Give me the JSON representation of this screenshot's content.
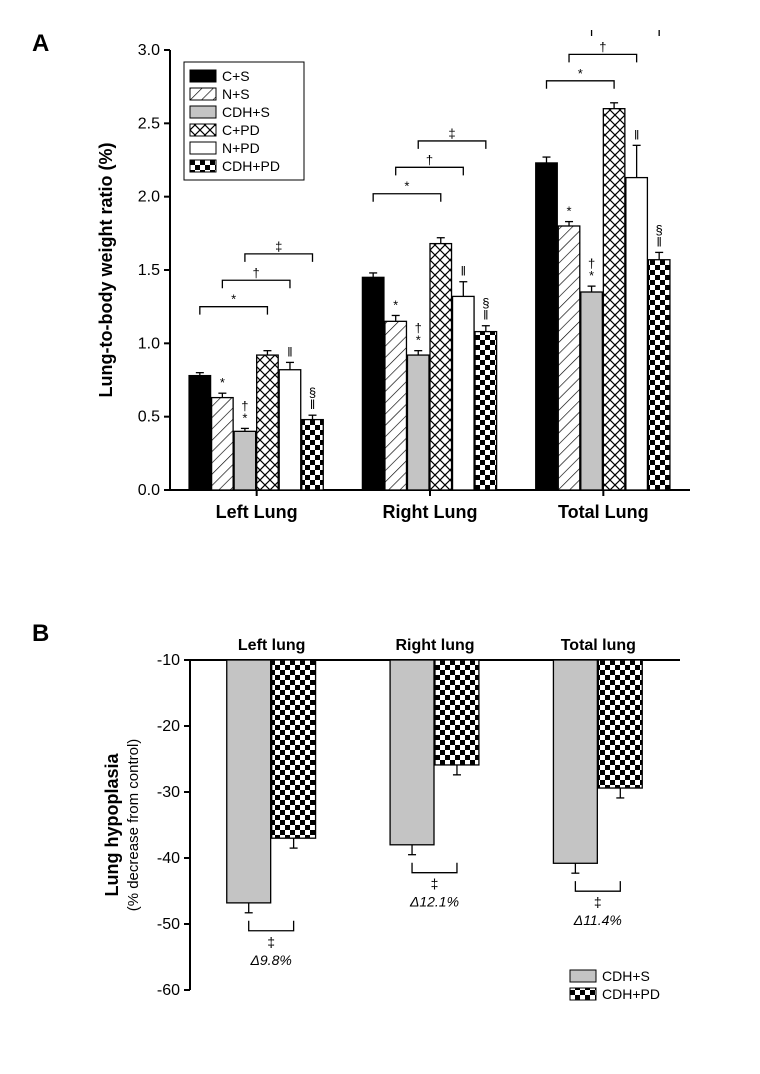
{
  "panelA": {
    "label": "A",
    "type": "bar",
    "y_label": "Lung-to-body weight ratio (%)",
    "y_label_fontsize": 18,
    "ylim": [
      0.0,
      3.0
    ],
    "ytick_step": 0.5,
    "categories": [
      "Left Lung",
      "Right Lung",
      "Total Lung"
    ],
    "category_fontsize": 18,
    "series": [
      {
        "name": "C+S",
        "fill": "#000000",
        "pattern": "solid"
      },
      {
        "name": "N+S",
        "fill": "#ffffff",
        "pattern": "diag"
      },
      {
        "name": "CDH+S",
        "fill": "#c4c4c4",
        "pattern": "solid"
      },
      {
        "name": "C+PD",
        "fill": "#ffffff",
        "pattern": "cross"
      },
      {
        "name": "N+PD",
        "fill": "#ffffff",
        "pattern": "solid"
      },
      {
        "name": "CDH+PD",
        "fill": "#ffffff",
        "pattern": "check"
      }
    ],
    "values": [
      [
        0.78,
        0.63,
        0.4,
        0.92,
        0.82,
        0.48
      ],
      [
        1.45,
        1.15,
        0.92,
        1.68,
        1.32,
        1.08
      ],
      [
        2.23,
        1.8,
        1.35,
        2.6,
        2.13,
        1.57
      ]
    ],
    "errors": [
      [
        0.02,
        0.03,
        0.02,
        0.03,
        0.05,
        0.03
      ],
      [
        0.03,
        0.04,
        0.03,
        0.04,
        0.1,
        0.04
      ],
      [
        0.04,
        0.03,
        0.04,
        0.04,
        0.22,
        0.05
      ]
    ],
    "sig_marks": [
      [
        "",
        "*",
        "*†",
        "",
        "‖",
        "‖§"
      ],
      [
        "",
        "*",
        "*†",
        "",
        "‖",
        "‖§"
      ],
      [
        "",
        "*",
        "*†",
        "",
        "‖",
        "‖§"
      ]
    ],
    "brackets": [
      {
        "group": 0,
        "level": 1,
        "from": 0,
        "to": 3,
        "label": "*"
      },
      {
        "group": 0,
        "level": 2,
        "from": 1,
        "to": 4,
        "label": "†"
      },
      {
        "group": 0,
        "level": 3,
        "from": 2,
        "to": 5,
        "label": "‡"
      },
      {
        "group": 1,
        "level": 1,
        "from": 0,
        "to": 3,
        "label": "*"
      },
      {
        "group": 1,
        "level": 2,
        "from": 1,
        "to": 4,
        "label": "†"
      },
      {
        "group": 1,
        "level": 3,
        "from": 2,
        "to": 5,
        "label": "‡"
      },
      {
        "group": 2,
        "level": 1,
        "from": 0,
        "to": 3,
        "label": "*"
      },
      {
        "group": 2,
        "level": 2,
        "from": 1,
        "to": 4,
        "label": "†"
      },
      {
        "group": 2,
        "level": 3,
        "from": 2,
        "to": 5,
        "label": "‡"
      }
    ],
    "bracket_base_offsets": [
      0.3,
      0.3,
      0.15
    ],
    "axis_color": "#000000",
    "bar_stroke": "#000000",
    "err_color": "#000000",
    "annot_fontsize": 13
  },
  "panelB": {
    "label": "B",
    "type": "bar",
    "y_label": "Lung hypoplasia",
    "y_sub_label": "(% decrease from control)",
    "y_label_fontsize": 18,
    "ylim": [
      -60,
      -10
    ],
    "ytick_step": 10,
    "categories": [
      "Left lung",
      "Right lung",
      "Total lung"
    ],
    "category_fontsize": 16,
    "series": [
      {
        "name": "CDH+S",
        "fill": "#c4c4c4",
        "pattern": "solid"
      },
      {
        "name": "CDH+PD",
        "fill": "#ffffff",
        "pattern": "check"
      }
    ],
    "values": [
      [
        -46.8,
        -37.0
      ],
      [
        -38.0,
        -25.9
      ],
      [
        -40.8,
        -29.4
      ]
    ],
    "errors": [
      [
        1.5,
        1.5
      ],
      [
        1.5,
        1.5
      ],
      [
        1.5,
        1.5
      ]
    ],
    "delta_labels": [
      "Δ9.8%",
      "Δ12.1%",
      "Δ11.4%"
    ],
    "bracket_label": "‡",
    "axis_color": "#000000",
    "bar_stroke": "#000000",
    "err_color": "#000000",
    "annot_fontsize": 14
  }
}
